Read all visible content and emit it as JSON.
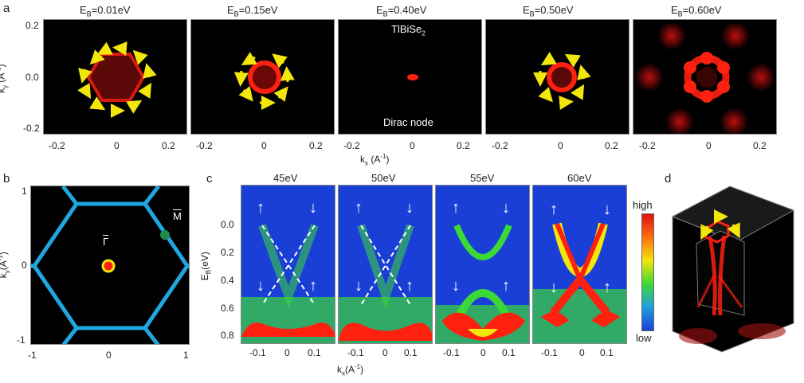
{
  "panel_a": {
    "letter": "a",
    "titles": [
      "E_B=0.01eV",
      "E_B=0.15eV",
      "E_B=0.40eV",
      "E_B=0.50eV",
      "E_B=0.60eV"
    ],
    "title_prefix": "E",
    "title_sub": "B",
    "title_values": [
      "=0.01eV",
      "=0.15eV",
      "=0.40eV",
      "=0.50eV",
      "=0.60eV"
    ],
    "compound": "TlBiSe",
    "compound_sub": "2",
    "dirac_label": "Dirac node",
    "y_ticks": [
      "0.2",
      "0.0",
      "-0.2"
    ],
    "x_ticks": [
      "-0.2",
      "0",
      "0.2"
    ],
    "ylabel": "k",
    "ylabel_sub": "y",
    "ylabel_unit": " (A",
    "ylabel_sup": "-1",
    "ylabel_close": ")",
    "xlabel": "k",
    "xlabel_sub": "x",
    "xlabel_unit": " (A",
    "xlabel_sup": "-1",
    "xlabel_close": ")"
  },
  "panel_b": {
    "letter": "b",
    "y_ticks": [
      "1",
      "0",
      "-1"
    ],
    "x_ticks": [
      "-1",
      "0",
      "1"
    ],
    "gamma_label": "Γ",
    "m_label": "M",
    "ylabel": "k",
    "ylabel_sub": "y",
    "ylabel_unit": "(A",
    "ylabel_sup": "-1",
    "ylabel_close": ")",
    "hex_color": "#1fa8e0"
  },
  "panel_c": {
    "letter": "c",
    "titles": [
      "45eV",
      "50eV",
      "55eV",
      "60eV"
    ],
    "y_ticks": [
      "0.0",
      "0.2",
      "0.4",
      "0.6",
      "0.8"
    ],
    "x_ticks": [
      "-0.1",
      "0",
      "0.1"
    ],
    "ylabel": "E",
    "ylabel_sub": "B",
    "ylabel_unit": "(eV)",
    "xlabel": "k",
    "xlabel_sub": "x",
    "xlabel_unit": "(A",
    "xlabel_sup": "-1",
    "xlabel_close": ")",
    "spin_up": "↑",
    "spin_down": "↓",
    "colorbar_high": "high",
    "colorbar_low": "low"
  },
  "panel_d": {
    "letter": "d"
  },
  "colors": {
    "red": "#ff1a10",
    "yellow": "#f3e60a",
    "arpes_blue": "#1a3fd6",
    "arpes_green": "#3cd838"
  }
}
